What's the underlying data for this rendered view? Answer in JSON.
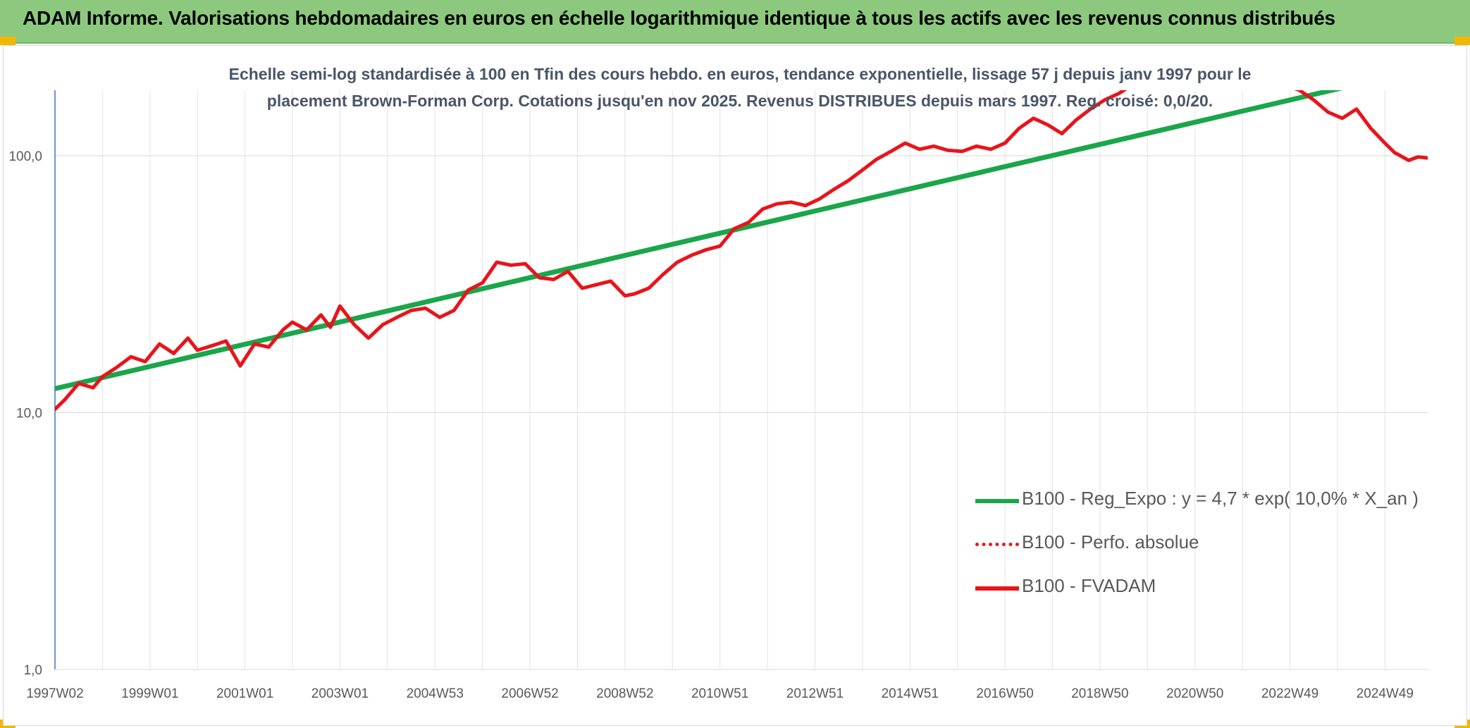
{
  "header": {
    "title": "ADAM Informe. Valorisations hebdomadaires en euros en échelle logarithmique identique à tous les actifs avec les revenus connus distribués"
  },
  "chart_data": {
    "type": "line",
    "title_lines": [
      "Echelle semi-log standardisée à 100 en Tfin des cours hebdo. en euros, tendance exponentielle, lissage 57 j depuis janv 1997 pour le",
      "placement Brown-Forman Corp. Cotations jusqu'en nov 2025. Revenus DISTRIBUES depuis mars 1997. Reg. croisé: 0,0/20."
    ],
    "y_scale": "log",
    "ylim": [
      1,
      180
    ],
    "y_ticks": [
      {
        "value": 1,
        "label": "1,0"
      },
      {
        "value": 10,
        "label": "10,0"
      },
      {
        "value": 100,
        "label": "100,0"
      }
    ],
    "x_ticks": [
      "1997W02",
      "1999W01",
      "2001W01",
      "2003W01",
      "2004W53",
      "2006W52",
      "2008W52",
      "2010W51",
      "2012W51",
      "2014W51",
      "2016W50",
      "2018W50",
      "2020W50",
      "2022W49",
      "2024W49"
    ],
    "xlim": [
      1997.0,
      2025.9
    ],
    "grid": true,
    "legend_position": "bottom-right",
    "series": [
      {
        "name": "B100 - Reg_Expo : y = 4,7 * exp( 10,0% *  X_an )",
        "color": "#1aa64a",
        "style": "solid",
        "x": [
          1997.0,
          2025.9
        ],
        "y": [
          12.4,
          220
        ]
      },
      {
        "name": "B100 - Perfo. absolue",
        "color": "#e31a1c",
        "style": "dotted",
        "x": [],
        "y": []
      },
      {
        "name": "B100 - FVADAM",
        "color": "#e8141c",
        "style": "solid",
        "x": [
          1997.0,
          1997.2,
          1997.5,
          1997.8,
          1998.0,
          1998.3,
          1998.6,
          1998.9,
          1999.2,
          1999.5,
          1999.8,
          2000.0,
          2000.3,
          2000.6,
          2000.9,
          2001.2,
          2001.5,
          2001.8,
          2002.0,
          2002.3,
          2002.6,
          2002.8,
          2003.0,
          2003.3,
          2003.6,
          2003.9,
          2004.2,
          2004.5,
          2004.8,
          2005.1,
          2005.4,
          2005.7,
          2006.0,
          2006.3,
          2006.6,
          2006.9,
          2007.2,
          2007.5,
          2007.8,
          2008.1,
          2008.4,
          2008.7,
          2009.0,
          2009.2,
          2009.5,
          2009.8,
          2010.1,
          2010.4,
          2010.7,
          2011.0,
          2011.3,
          2011.6,
          2011.9,
          2012.2,
          2012.5,
          2012.8,
          2013.1,
          2013.4,
          2013.7,
          2014.0,
          2014.3,
          2014.6,
          2014.9,
          2015.2,
          2015.5,
          2015.8,
          2016.1,
          2016.4,
          2016.7,
          2017.0,
          2017.3,
          2017.6,
          2017.9,
          2018.2,
          2018.5,
          2018.8,
          2019.1,
          2019.4,
          2019.7,
          2020.0,
          2020.2,
          2020.5,
          2020.8,
          2021.1,
          2021.4,
          2021.7,
          2022.0,
          2022.3,
          2022.6,
          2022.9,
          2023.2,
          2023.5,
          2023.8,
          2024.1,
          2024.4,
          2024.7,
          2025.0,
          2025.2,
          2025.5,
          2025.7,
          2025.9
        ],
        "y": [
          10.3,
          11.2,
          13.0,
          12.5,
          13.8,
          15.0,
          16.5,
          15.8,
          18.5,
          17.0,
          19.5,
          17.5,
          18.2,
          19.0,
          15.2,
          18.5,
          18.0,
          21.0,
          22.5,
          21.0,
          24.0,
          21.5,
          26.0,
          22.0,
          19.5,
          22.0,
          23.5,
          25.0,
          25.5,
          23.5,
          25.0,
          30.0,
          32.0,
          38.5,
          37.5,
          38.0,
          33.5,
          33.0,
          35.5,
          30.5,
          31.5,
          32.5,
          28.5,
          29.0,
          30.5,
          34.5,
          38.5,
          41.0,
          43.0,
          44.5,
          52.0,
          55.0,
          62.0,
          65.0,
          66.0,
          64.0,
          68.0,
          74.0,
          80.0,
          88.0,
          97.0,
          104.0,
          112.0,
          106.0,
          109.0,
          105.0,
          104.0,
          109.0,
          106.0,
          112.0,
          128.0,
          140.0,
          132.0,
          122.0,
          138.0,
          152.0,
          165.0,
          175.0,
          190.0,
          196.0,
          200.0,
          196.0,
          185.0,
          198.0,
          205.0,
          210.0,
          205.0,
          200.0,
          195.0,
          188.0,
          180.0,
          165.0,
          148.0,
          140.0,
          152.0,
          128.0,
          112.0,
          103.0,
          96.0,
          99.0,
          98.0
        ]
      }
    ]
  }
}
